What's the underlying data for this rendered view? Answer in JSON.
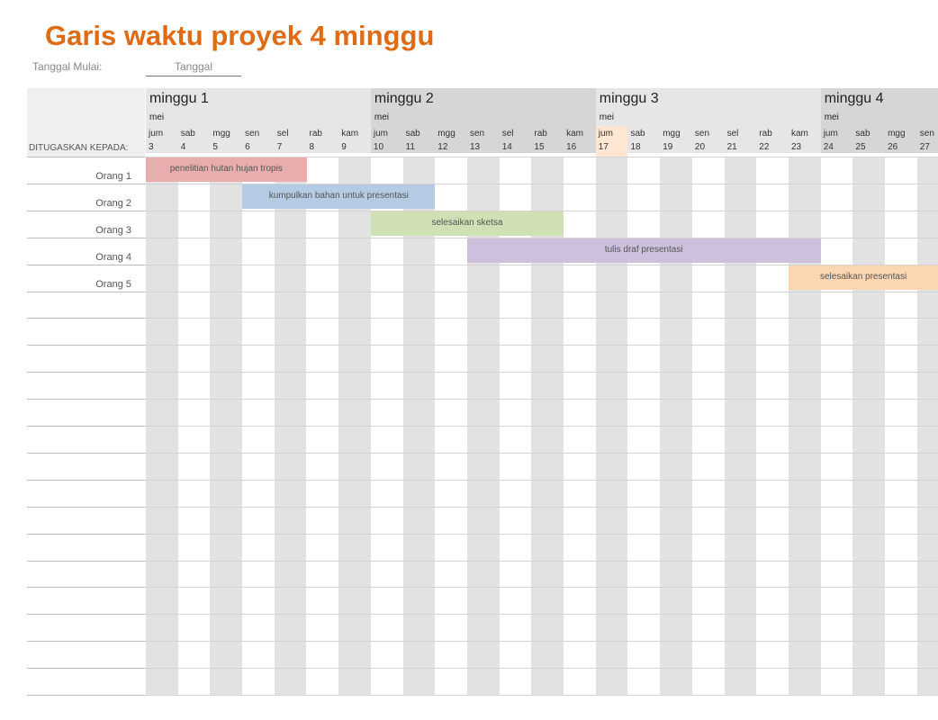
{
  "title": "Garis waktu proyek 4 minggu",
  "start": {
    "label": "Tanggal Mulai:",
    "value": "Tanggal"
  },
  "assigned_label": "DITUGASKAN KEPADA:",
  "weeks": [
    {
      "label": "minggu 1",
      "month": "mei"
    },
    {
      "label": "minggu 2",
      "month": "mei"
    },
    {
      "label": "minggu 3",
      "month": "mei"
    },
    {
      "label": "minggu 4",
      "month": "mei"
    }
  ],
  "days": [
    {
      "name": "jum",
      "date": "3"
    },
    {
      "name": "sab",
      "date": "4"
    },
    {
      "name": "mgg",
      "date": "5"
    },
    {
      "name": "sen",
      "date": "6"
    },
    {
      "name": "sel",
      "date": "7"
    },
    {
      "name": "rab",
      "date": "8"
    },
    {
      "name": "kam",
      "date": "9"
    },
    {
      "name": "jum",
      "date": "10"
    },
    {
      "name": "sab",
      "date": "11"
    },
    {
      "name": "mgg",
      "date": "12"
    },
    {
      "name": "sen",
      "date": "13"
    },
    {
      "name": "sel",
      "date": "14"
    },
    {
      "name": "rab",
      "date": "15"
    },
    {
      "name": "kam",
      "date": "16"
    },
    {
      "name": "jum",
      "date": "17"
    },
    {
      "name": "sab",
      "date": "18"
    },
    {
      "name": "mgg",
      "date": "19"
    },
    {
      "name": "sen",
      "date": "20"
    },
    {
      "name": "sel",
      "date": "21"
    },
    {
      "name": "rab",
      "date": "22"
    },
    {
      "name": "kam",
      "date": "23"
    },
    {
      "name": "jum",
      "date": "24"
    },
    {
      "name": "sab",
      "date": "25"
    },
    {
      "name": "mgg",
      "date": "26"
    },
    {
      "name": "sen",
      "date": "27"
    }
  ],
  "highlight_date": "17",
  "people": [
    "Orang 1",
    "Orang 2",
    "Orang 3",
    "Orang 4",
    "Orang 5"
  ],
  "tasks": [
    {
      "label": "penelitian hutan hujan tropis",
      "person": "Orang 1",
      "start": "3",
      "end": "7",
      "color": "#e8aeae"
    },
    {
      "label": "kumpulkan bahan untuk presentasi",
      "person": "Orang 2",
      "start": "6",
      "end": "11",
      "color": "#b5cbe3"
    },
    {
      "label": "selesaikan sketsa",
      "person": "Orang 3",
      "start": "10",
      "end": "15",
      "color": "#cfe0b5"
    },
    {
      "label": "tulis draf presentasi",
      "person": "Orang 4",
      "start": "13",
      "end": "23",
      "color": "#cdc0dc"
    },
    {
      "label": "selesaikan presentasi",
      "person": "Orang 5",
      "start": "23",
      "end": "27",
      "color": "#fbd6b1"
    }
  ],
  "colors": {
    "title": "#e06b17",
    "shaded_column": "#e2e2e2",
    "today": "#fde6d2"
  }
}
